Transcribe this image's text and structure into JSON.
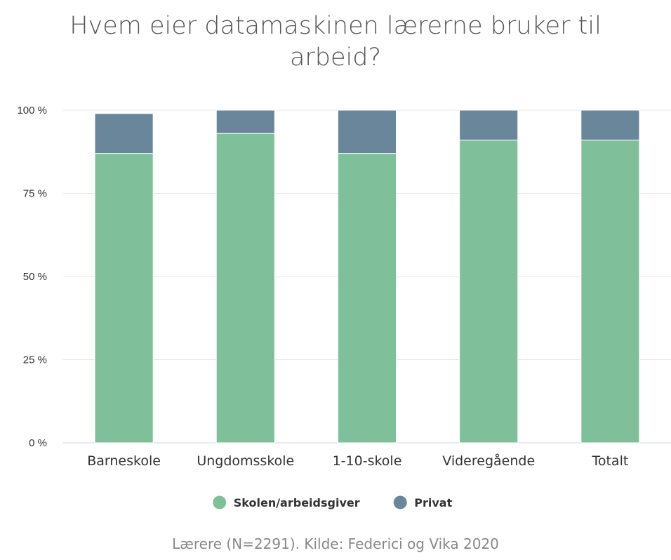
{
  "chart_data": {
    "type": "bar",
    "stacked": true,
    "title": "Hvem eier datamaskinen lærerne bruker til arbeid?",
    "title_lines": [
      "Hvem eier datamaskinen lærerne bruker til",
      "arbeid?"
    ],
    "categories": [
      "Barneskole",
      "Ungdomsskole",
      "1-10-skole",
      "Videregående",
      "Totalt"
    ],
    "series": [
      {
        "name": "Skolen/arbeidsgiver",
        "color": "#7fbf9a",
        "values": [
          87,
          93,
          87,
          91,
          91
        ]
      },
      {
        "name": "Privat",
        "color": "#6a869b",
        "values": [
          12,
          7,
          13,
          9,
          9
        ]
      }
    ],
    "ylim": [
      0,
      100
    ],
    "yticks": [
      0,
      25,
      50,
      75,
      100
    ],
    "ytick_labels": [
      "0 %",
      "25 %",
      "50 %",
      "75 %",
      "100 %"
    ],
    "grid": true,
    "legend_position": "bottom",
    "caption": "Lærere (N=2291). Kilde: Federici og Vika 2020"
  }
}
